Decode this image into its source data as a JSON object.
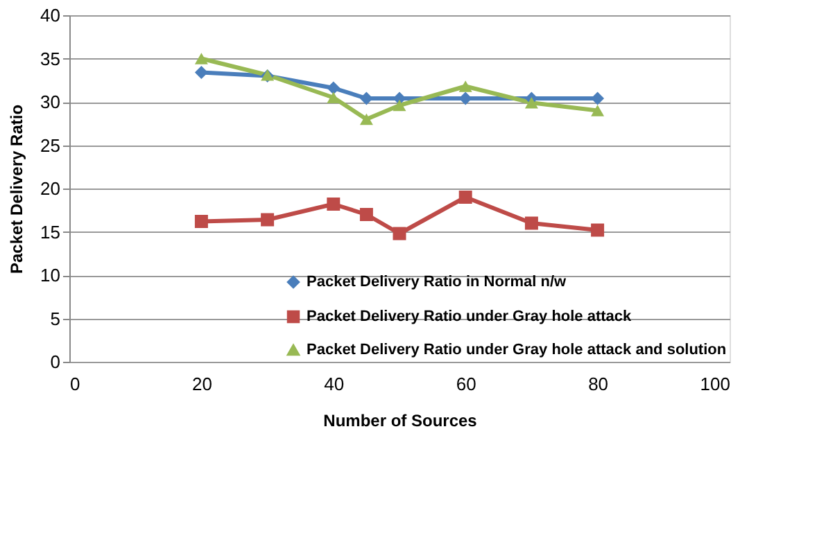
{
  "chart_data": {
    "type": "line",
    "xlabel": "Number of Sources",
    "ylabel": "Packet Delivery Ratio",
    "x": [
      20,
      30,
      40,
      45,
      50,
      60,
      70,
      80
    ],
    "series": [
      {
        "name": "Packet Delivery Ratio in Normal n/w",
        "color": "#4a7ebb",
        "marker": "diamond",
        "values": [
          33.4,
          33,
          31.6,
          30.4,
          30.4,
          30.4,
          30.4,
          30.4
        ]
      },
      {
        "name": "Packet Delivery Ratio under Gray hole attack",
        "color": "#be4b48",
        "marker": "square",
        "values": [
          16.2,
          16.4,
          18.2,
          17,
          14.8,
          19,
          16,
          15.2
        ]
      },
      {
        "name": "Packet Delivery Ratio under Gray hole attack and solution",
        "color": "#98b954",
        "marker": "triangle",
        "values": [
          35,
          33.1,
          30.5,
          28,
          29.6,
          31.8,
          29.9,
          29
        ]
      }
    ],
    "xlim": [
      0,
      100
    ],
    "xticks": [
      0,
      20,
      40,
      60,
      80,
      100
    ],
    "ylim": [
      0,
      40
    ],
    "yticks": [
      0,
      5,
      10,
      15,
      20,
      25,
      30,
      35,
      40
    ],
    "grid": "y",
    "legend": "bottom right",
    "line_style": "solid"
  }
}
